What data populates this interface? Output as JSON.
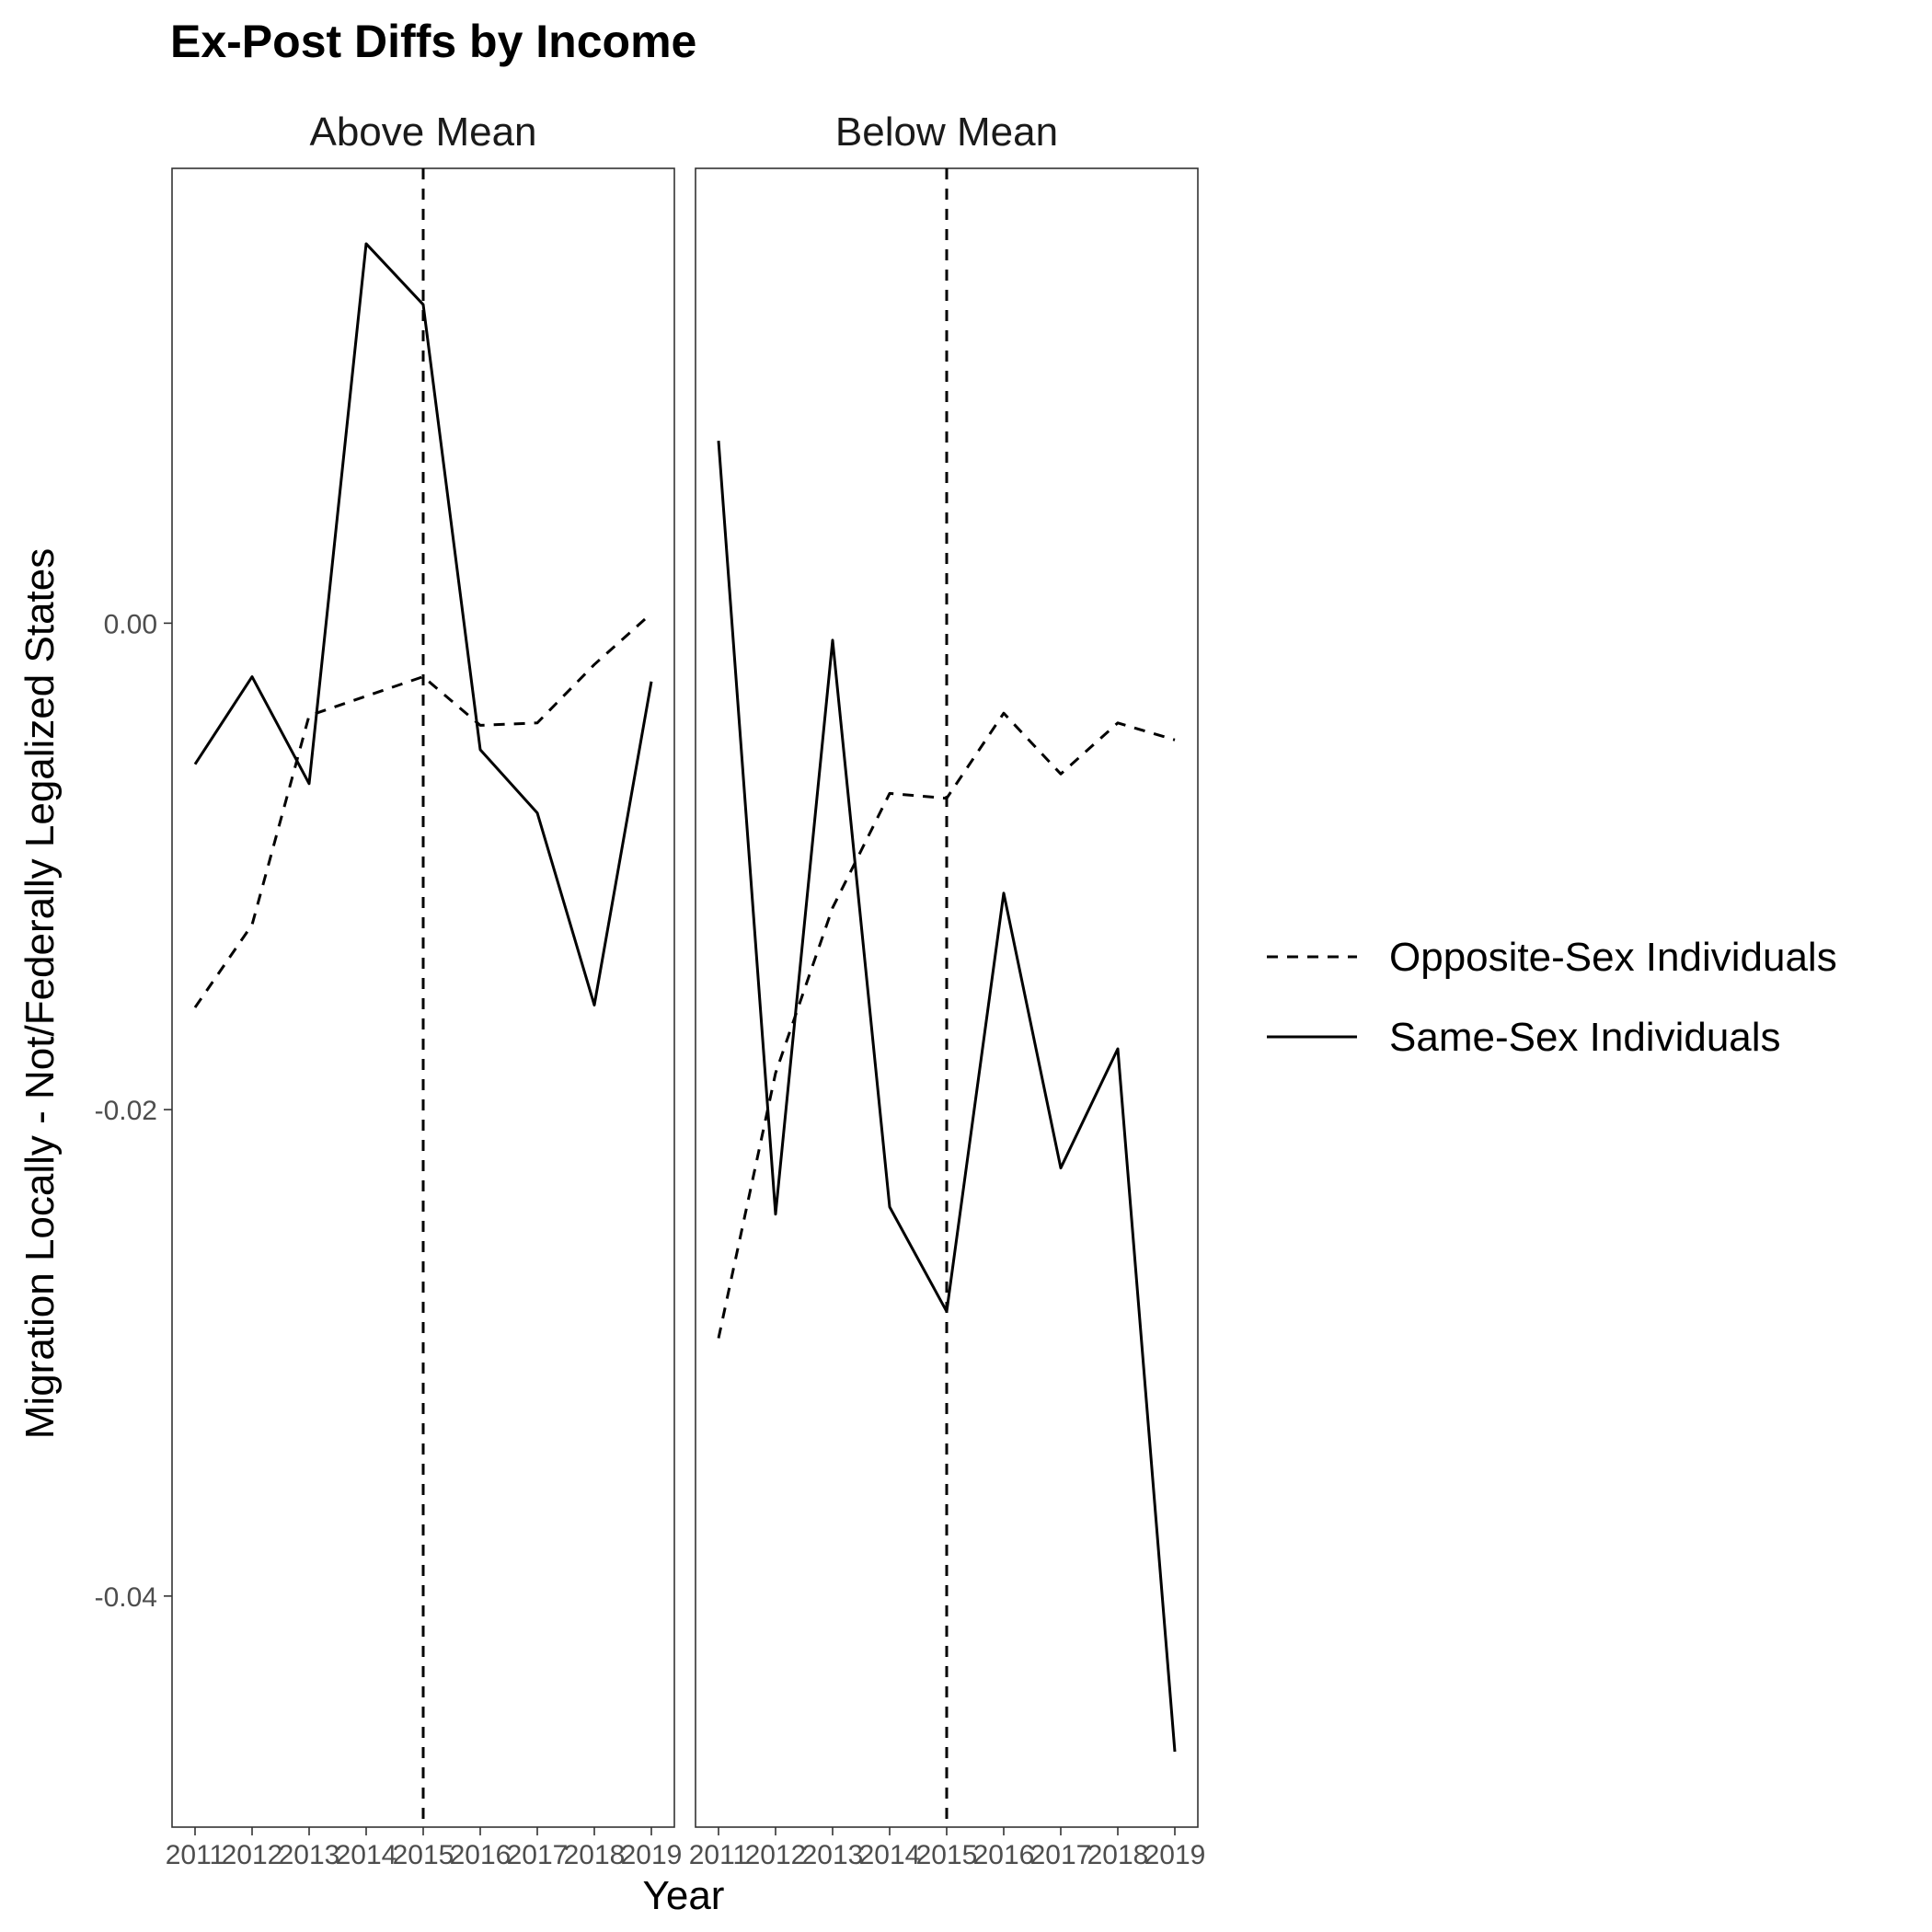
{
  "chart_data": {
    "type": "line",
    "title": "Ex-Post Diffs by Income",
    "xlabel": "Year",
    "ylabel": "Migration Locally - Not/Federally Legalized States",
    "x": [
      2011,
      2012,
      2013,
      2014,
      2015,
      2016,
      2017,
      2018,
      2019
    ],
    "x_tick_labels": [
      "2011",
      "2012",
      "2013",
      "2014",
      "2015",
      "2016",
      "2017",
      "2018",
      "2019"
    ],
    "y_ticks": [
      0.0,
      -0.02,
      -0.04
    ],
    "y_tick_labels": [
      "0.00",
      "-0.02",
      "-0.04"
    ],
    "ylim": [
      -0.0495,
      0.0187
    ],
    "vline_x": 2015,
    "grid": false,
    "legend_position": "right",
    "series_names": [
      "Opposite-Sex Individuals",
      "Same-Sex Individuals"
    ],
    "panels": [
      {
        "label": "Above Mean",
        "series": [
          {
            "name": "Opposite-Sex Individuals",
            "line": "dashed",
            "values": [
              -0.0158,
              -0.0124,
              -0.0038,
              -0.003,
              -0.0022,
              -0.0042,
              -0.0041,
              -0.0017,
              0.0004
            ]
          },
          {
            "name": "Same-Sex Individuals",
            "line": "solid",
            "values": [
              -0.0058,
              -0.0022,
              -0.0066,
              0.0156,
              0.0131,
              -0.0052,
              -0.0078,
              -0.0157,
              -0.0024
            ]
          }
        ]
      },
      {
        "label": "Below Mean",
        "series": [
          {
            "name": "Opposite-Sex Individuals",
            "line": "dashed",
            "values": [
              -0.0294,
              -0.0185,
              -0.0117,
              -0.007,
              -0.0072,
              -0.0037,
              -0.0062,
              -0.0041,
              -0.0048
            ]
          },
          {
            "name": "Same-Sex Individuals",
            "line": "solid",
            "values": [
              0.0075,
              -0.0243,
              -0.0007,
              -0.024,
              -0.0283,
              -0.0111,
              -0.0224,
              -0.0175,
              -0.0464
            ]
          }
        ]
      }
    ]
  }
}
